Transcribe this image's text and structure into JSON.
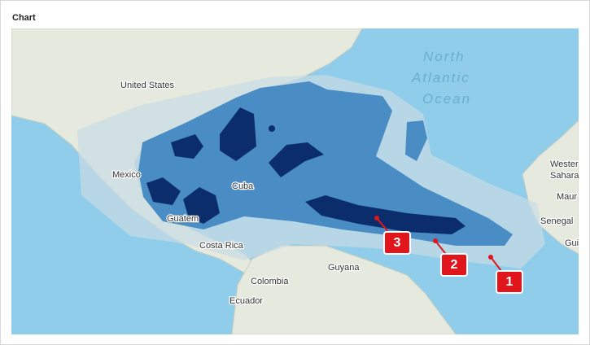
{
  "header": {
    "title": "Chart"
  },
  "map": {
    "labels": [
      {
        "text": "North"
      },
      {
        "text": "Atlantic"
      },
      {
        "text": "Ocean"
      },
      {
        "text": "United States"
      },
      {
        "text": "Mexico"
      },
      {
        "text": "Cuba"
      },
      {
        "text": "Guatem"
      },
      {
        "text": "Costa Rica"
      },
      {
        "text": "Guyana"
      },
      {
        "text": "Colombia"
      },
      {
        "text": "Ecuador"
      },
      {
        "text": "Wester"
      },
      {
        "text": "Sahara"
      },
      {
        "text": "Maur"
      },
      {
        "text": "Senegal"
      },
      {
        "text": "Gui"
      }
    ],
    "markers": [
      {
        "label": "1"
      },
      {
        "label": "2"
      },
      {
        "label": "3"
      }
    ]
  }
}
